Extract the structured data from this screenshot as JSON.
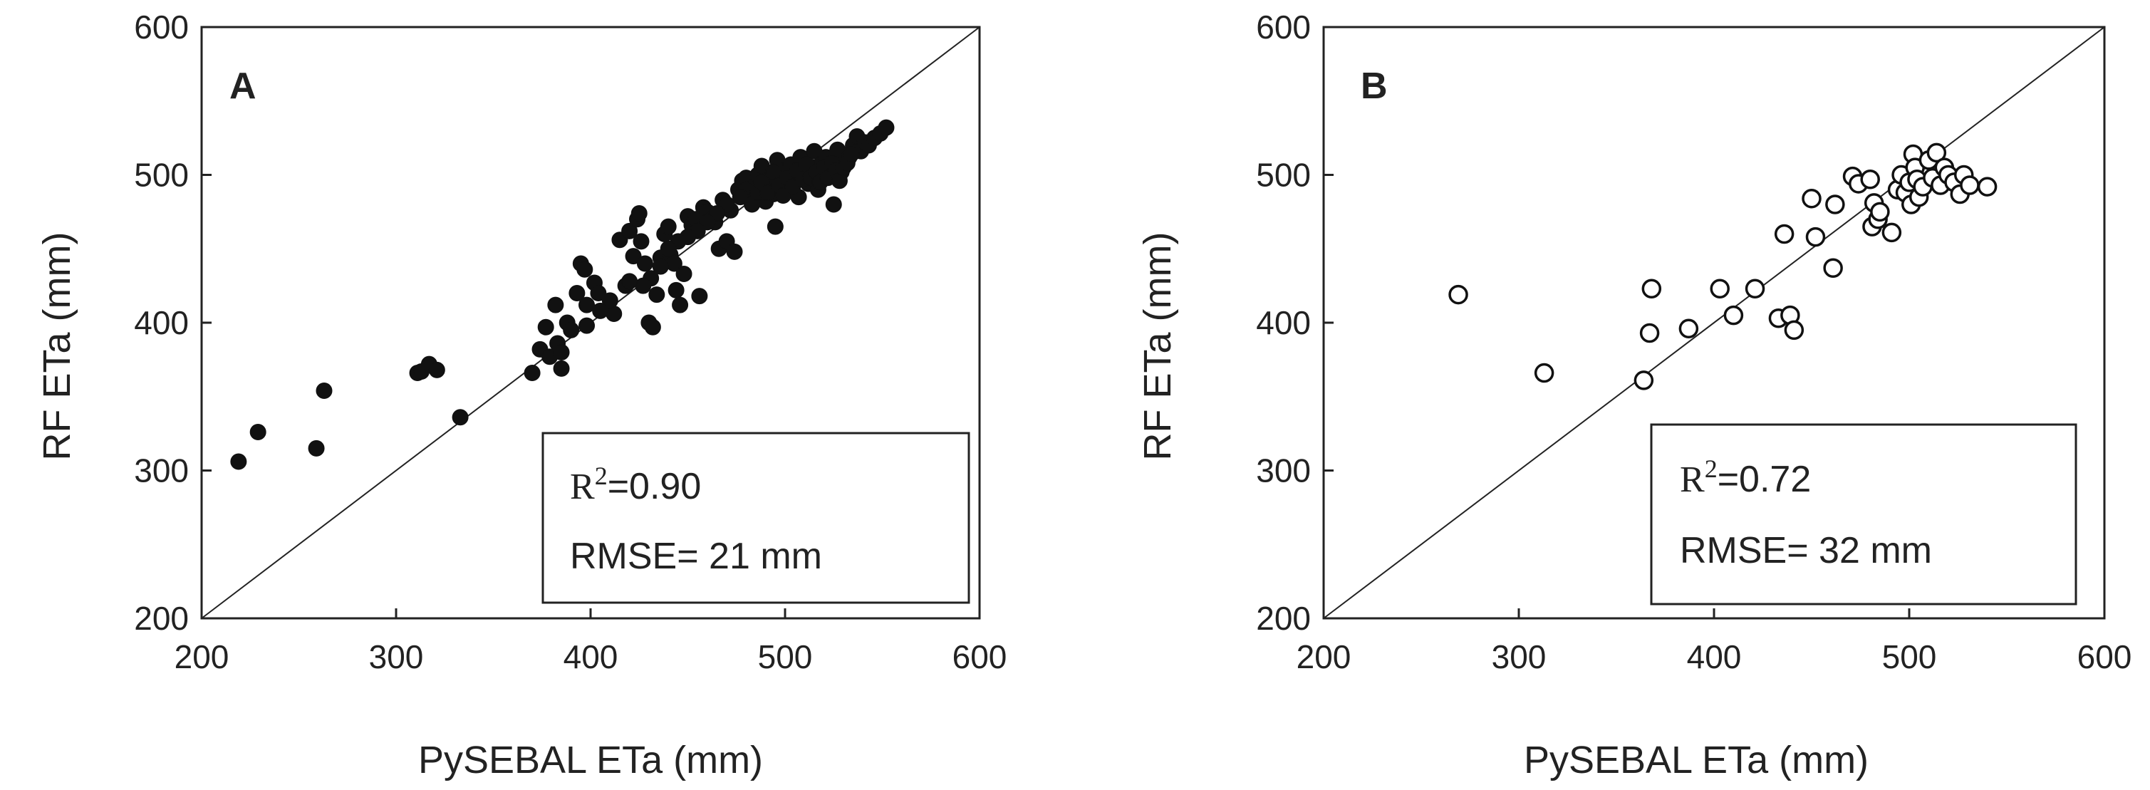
{
  "chart_data": [
    {
      "type": "scatter",
      "panel_label": "A",
      "xlabel": "PySEBAL ETa (mm)",
      "ylabel": "RF ETa (mm)",
      "xlim": [
        200,
        600
      ],
      "ylim": [
        200,
        600
      ],
      "xticks": [
        "200",
        "300",
        "400",
        "500",
        "600"
      ],
      "yticks": [
        "200",
        "300",
        "400",
        "500",
        "600"
      ],
      "reference_line": "1:1",
      "marker": "filled-circle",
      "stats": {
        "r2_prefix": "R",
        "r2_exp": "2",
        "r2_value": "=0.90",
        "rmse": "RMSE= 21 mm"
      },
      "points": [
        [
          219,
          306
        ],
        [
          229,
          326
        ],
        [
          259,
          315
        ],
        [
          263,
          354
        ],
        [
          311,
          366
        ],
        [
          313,
          367
        ],
        [
          317,
          372
        ],
        [
          321,
          368
        ],
        [
          333,
          336
        ],
        [
          370,
          366
        ],
        [
          374,
          382
        ],
        [
          377,
          397
        ],
        [
          379,
          377
        ],
        [
          382,
          412
        ],
        [
          383,
          386
        ],
        [
          385,
          369
        ],
        [
          388,
          400
        ],
        [
          393,
          420
        ],
        [
          395,
          440
        ],
        [
          397,
          436
        ],
        [
          398,
          412
        ],
        [
          402,
          427
        ],
        [
          404,
          420
        ],
        [
          412,
          406
        ],
        [
          415,
          456
        ],
        [
          418,
          425
        ],
        [
          420,
          462
        ],
        [
          422,
          445
        ],
        [
          424,
          470
        ],
        [
          425,
          474
        ],
        [
          426,
          455
        ],
        [
          428,
          440
        ],
        [
          430,
          400
        ],
        [
          432,
          397
        ],
        [
          434,
          419
        ],
        [
          436,
          444
        ],
        [
          438,
          460
        ],
        [
          440,
          465
        ],
        [
          441,
          446
        ],
        [
          443,
          440
        ],
        [
          444,
          422
        ],
        [
          446,
          412
        ],
        [
          448,
          433
        ],
        [
          450,
          472
        ],
        [
          452,
          466
        ],
        [
          454,
          470
        ],
        [
          456,
          418
        ],
        [
          458,
          478
        ],
        [
          460,
          475
        ],
        [
          462,
          470
        ],
        [
          464,
          468
        ],
        [
          466,
          450
        ],
        [
          468,
          483
        ],
        [
          470,
          455
        ],
        [
          472,
          476
        ],
        [
          474,
          448
        ],
        [
          476,
          490
        ],
        [
          478,
          496
        ],
        [
          480,
          498
        ],
        [
          482,
          486
        ],
        [
          484,
          492
        ],
        [
          486,
          500
        ],
        [
          488,
          506
        ],
        [
          490,
          482
        ],
        [
          492,
          496
        ],
        [
          494,
          487
        ],
        [
          495,
          465
        ],
        [
          496,
          510
        ],
        [
          498,
          497
        ],
        [
          500,
          503
        ],
        [
          502,
          490
        ],
        [
          503,
          507
        ],
        [
          505,
          498
        ],
        [
          507,
          485
        ],
        [
          508,
          512
        ],
        [
          510,
          500
        ],
        [
          512,
          494
        ],
        [
          514,
          505
        ],
        [
          515,
          516
        ],
        [
          517,
          490
        ],
        [
          519,
          508
        ],
        [
          521,
          512
        ],
        [
          523,
          500
        ],
        [
          525,
          480
        ],
        [
          527,
          517
        ],
        [
          529,
          502
        ],
        [
          531,
          510
        ],
        [
          533,
          512
        ],
        [
          535,
          520
        ],
        [
          537,
          526
        ],
        [
          539,
          516
        ],
        [
          541,
          522
        ],
        [
          543,
          520
        ],
        [
          546,
          525
        ],
        [
          549,
          528
        ],
        [
          552,
          532
        ],
        [
          480,
          490
        ],
        [
          483,
          480
        ],
        [
          486,
          488
        ],
        [
          488,
          495
        ],
        [
          491,
          488
        ],
        [
          494,
          502
        ],
        [
          497,
          493
        ],
        [
          499,
          486
        ],
        [
          501,
          498
        ],
        [
          504,
          492
        ],
        [
          506,
          503
        ],
        [
          509,
          497
        ],
        [
          511,
          507
        ],
        [
          513,
          498
        ],
        [
          516,
          502
        ],
        [
          518,
          495
        ],
        [
          520,
          505
        ],
        [
          522,
          498
        ],
        [
          524,
          508
        ],
        [
          526,
          503
        ],
        [
          528,
          496
        ],
        [
          530,
          505
        ],
        [
          532,
          508
        ],
        [
          534,
          514
        ],
        [
          477,
          485
        ],
        [
          470,
          480
        ],
        [
          465,
          474
        ],
        [
          460,
          468
        ],
        [
          455,
          462
        ],
        [
          450,
          458
        ],
        [
          445,
          455
        ],
        [
          440,
          450
        ],
        [
          436,
          438
        ],
        [
          431,
          430
        ],
        [
          427,
          425
        ],
        [
          420,
          428
        ],
        [
          410,
          415
        ],
        [
          405,
          408
        ],
        [
          398,
          398
        ],
        [
          390,
          395
        ],
        [
          385,
          380
        ]
      ]
    },
    {
      "type": "scatter",
      "panel_label": "B",
      "xlabel": "PySEBAL ETa (mm)",
      "ylabel": "RF ETa (mm)",
      "xlim": [
        200,
        600
      ],
      "ylim": [
        200,
        600
      ],
      "xticks": [
        "200",
        "300",
        "400",
        "500",
        "600"
      ],
      "yticks": [
        "200",
        "300",
        "400",
        "500",
        "600"
      ],
      "reference_line": "1:1",
      "marker": "open-circle",
      "stats": {
        "r2_prefix": "R",
        "r2_exp": "2",
        "r2_value": "=0.72",
        "rmse": "RMSE= 32 mm"
      },
      "points": [
        [
          269,
          419
        ],
        [
          313,
          366
        ],
        [
          364,
          361
        ],
        [
          367,
          393
        ],
        [
          368,
          423
        ],
        [
          387,
          396
        ],
        [
          403,
          423
        ],
        [
          410,
          405
        ],
        [
          421,
          423
        ],
        [
          433,
          403
        ],
        [
          436,
          460
        ],
        [
          439,
          405
        ],
        [
          441,
          395
        ],
        [
          450,
          484
        ],
        [
          452,
          458
        ],
        [
          461,
          437
        ],
        [
          462,
          480
        ],
        [
          471,
          499
        ],
        [
          474,
          494
        ],
        [
          480,
          497
        ],
        [
          481,
          465
        ],
        [
          482,
          481
        ],
        [
          484,
          470
        ],
        [
          485,
          475
        ],
        [
          491,
          461
        ],
        [
          494,
          490
        ],
        [
          496,
          500
        ],
        [
          498,
          488
        ],
        [
          500,
          495
        ],
        [
          501,
          480
        ],
        [
          502,
          514
        ],
        [
          503,
          505
        ],
        [
          504,
          497
        ],
        [
          505,
          485
        ],
        [
          507,
          492
        ],
        [
          510,
          510
        ],
        [
          512,
          498
        ],
        [
          514,
          515
        ],
        [
          516,
          493
        ],
        [
          518,
          505
        ],
        [
          520,
          500
        ],
        [
          523,
          495
        ],
        [
          526,
          487
        ],
        [
          528,
          500
        ],
        [
          531,
          493
        ],
        [
          540,
          492
        ]
      ]
    }
  ]
}
